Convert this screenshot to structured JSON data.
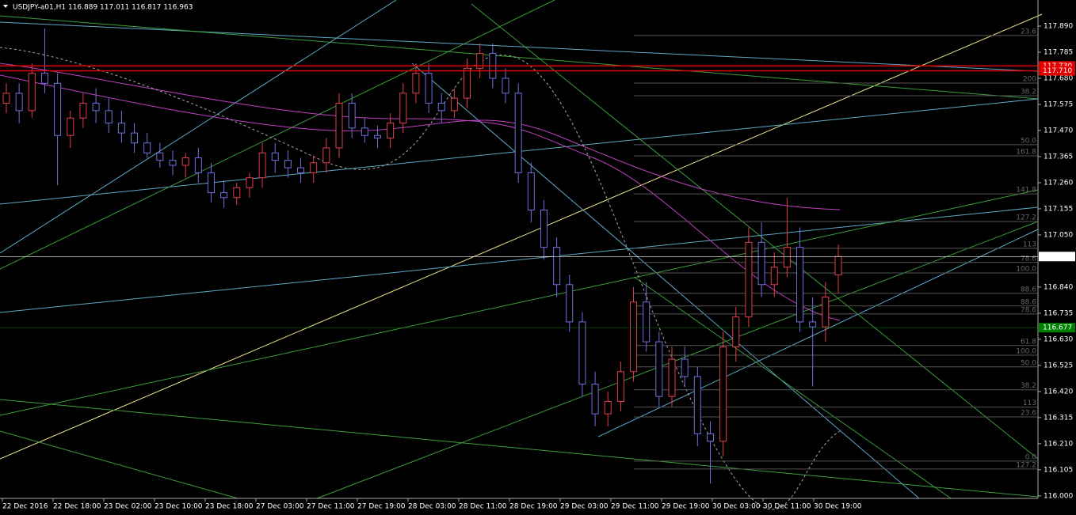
{
  "header": {
    "title": "USDJPY-a01,H1  116.889 117.011 116.817 116.963"
  },
  "chart_data": {
    "type": "candlestick",
    "open": [
      117.58,
      117.62,
      117.55,
      117.7,
      117.66,
      117.45,
      117.52,
      117.58,
      117.55,
      117.5,
      117.46,
      117.42,
      117.38,
      117.35,
      117.33,
      117.36,
      117.3,
      117.22,
      117.2,
      117.24,
      117.28,
      117.38,
      117.35,
      117.32,
      117.3,
      117.34,
      117.4,
      117.58,
      117.48,
      117.45,
      117.44,
      117.5,
      117.62,
      117.7,
      117.58,
      117.55,
      117.6,
      117.72,
      117.78,
      117.68,
      117.62,
      117.3,
      117.15,
      117.0,
      116.85,
      116.7,
      116.45,
      116.33,
      116.38,
      116.5,
      116.78,
      116.62,
      116.4,
      116.55,
      116.48,
      116.25,
      116.22,
      116.6,
      116.72,
      117.02,
      116.85,
      116.92,
      117.0,
      116.7,
      116.68,
      116.889
    ],
    "high": [
      117.66,
      117.66,
      117.74,
      117.88,
      117.7,
      117.55,
      117.62,
      117.64,
      117.6,
      117.55,
      117.5,
      117.46,
      117.42,
      117.39,
      117.38,
      117.4,
      117.34,
      117.27,
      117.26,
      117.3,
      117.42,
      117.42,
      117.39,
      117.36,
      117.37,
      117.44,
      117.62,
      117.62,
      117.52,
      117.49,
      117.54,
      117.66,
      117.74,
      117.74,
      117.62,
      117.64,
      117.76,
      117.82,
      117.82,
      117.72,
      117.66,
      117.34,
      117.19,
      117.04,
      116.89,
      116.74,
      116.5,
      116.42,
      116.54,
      116.84,
      116.86,
      116.66,
      116.6,
      116.6,
      116.52,
      116.3,
      116.66,
      116.76,
      117.08,
      117.1,
      116.98,
      117.2,
      117.08,
      116.8,
      116.86,
      117.011
    ],
    "low": [
      117.54,
      117.5,
      117.52,
      117.62,
      117.25,
      117.4,
      117.48,
      117.5,
      117.46,
      117.42,
      117.38,
      117.36,
      117.32,
      117.29,
      117.28,
      117.26,
      117.18,
      117.16,
      117.17,
      117.2,
      117.24,
      117.3,
      117.28,
      117.26,
      117.26,
      117.3,
      117.36,
      117.44,
      117.42,
      117.4,
      117.4,
      117.46,
      117.58,
      117.54,
      117.5,
      117.52,
      117.56,
      117.68,
      117.64,
      117.58,
      117.26,
      117.1,
      116.95,
      116.8,
      116.66,
      116.4,
      116.28,
      116.28,
      116.34,
      116.46,
      116.58,
      116.36,
      116.36,
      116.44,
      116.2,
      116.05,
      116.16,
      116.54,
      116.68,
      116.8,
      116.8,
      116.88,
      116.66,
      116.44,
      116.62,
      116.817
    ],
    "close": [
      117.62,
      117.55,
      117.7,
      117.66,
      117.45,
      117.52,
      117.58,
      117.55,
      117.5,
      117.46,
      117.42,
      117.38,
      117.35,
      117.33,
      117.36,
      117.3,
      117.22,
      117.2,
      117.24,
      117.28,
      117.38,
      117.35,
      117.32,
      117.3,
      117.34,
      117.4,
      117.58,
      117.48,
      117.45,
      117.44,
      117.5,
      117.62,
      117.7,
      117.58,
      117.55,
      117.6,
      117.72,
      117.78,
      117.68,
      117.62,
      117.3,
      117.15,
      117.0,
      116.85,
      116.7,
      116.45,
      116.33,
      116.38,
      116.5,
      116.78,
      116.62,
      116.4,
      116.55,
      116.48,
      116.25,
      116.22,
      116.6,
      116.72,
      117.02,
      116.85,
      116.92,
      117.0,
      116.7,
      116.68,
      116.8,
      116.963
    ],
    "bull_color": "#e0404a",
    "bear_color": "#7070e0",
    "xticks": [
      "22 Dec 2016",
      "22 Dec 18:00",
      "23 Dec 02:00",
      "23 Dec 10:00",
      "23 Dec 18:00",
      "27 Dec 03:00",
      "27 Dec 11:00",
      "27 Dec 19:00",
      "28 Dec 03:00",
      "28 Dec 11:00",
      "28 Dec 19:00",
      "29 Dec 03:00",
      "29 Dec 11:00",
      "29 Dec 19:00",
      "30 Dec 03:00",
      "30 Dec 11:00",
      "30 Dec 19:00"
    ],
    "ylim": [
      115.99,
      117.995
    ],
    "yticks": [
      {
        "value": 117.89,
        "label": "117.890"
      },
      {
        "value": 117.785,
        "label": "117.785"
      },
      {
        "value": 117.68,
        "label": "117.680"
      },
      {
        "value": 117.575,
        "label": "117.575"
      },
      {
        "value": 117.47,
        "label": "117.470"
      },
      {
        "value": 117.365,
        "label": "117.365"
      },
      {
        "value": 117.26,
        "label": "117.260"
      },
      {
        "value": 117.155,
        "label": "117.155"
      },
      {
        "value": 117.05,
        "label": "117.050"
      },
      {
        "value": 116.84,
        "label": "116.840"
      },
      {
        "value": 116.735,
        "label": "116.735"
      },
      {
        "value": 116.63,
        "label": "116.630"
      },
      {
        "value": 116.525,
        "label": "116.525"
      },
      {
        "value": 116.42,
        "label": "116.420"
      },
      {
        "value": 116.315,
        "label": "116.315"
      },
      {
        "value": 116.21,
        "label": "116.210"
      },
      {
        "value": 116.105,
        "label": "116.105"
      },
      {
        "value": 116.0,
        "label": "116.000"
      }
    ],
    "price_tags": [
      {
        "value": 117.73,
        "label": "117.730",
        "color": "#e00000"
      },
      {
        "value": 117.71,
        "label": "117.710",
        "color": "#e00000"
      },
      {
        "value": 116.677,
        "label": "116.677",
        "color": "#008000"
      },
      {
        "value": 116.963,
        "label": "116.963",
        "color": "#ffffff"
      }
    ],
    "levels": [
      {
        "value": 117.852,
        "label": "23.6"
      },
      {
        "value": 117.661,
        "label": "200"
      },
      {
        "value": 117.61,
        "label": "38.2"
      },
      {
        "value": 117.413,
        "label": "50.0"
      },
      {
        "value": 117.368,
        "label": "161.8"
      },
      {
        "value": 117.215,
        "label": "141.8"
      },
      {
        "value": 117.104,
        "label": "127.2"
      },
      {
        "value": 116.996,
        "label": "113"
      },
      {
        "value": 116.939,
        "label": "78.6"
      },
      {
        "value": 116.897,
        "label": "100.0"
      },
      {
        "value": 116.815,
        "label": "88.6"
      },
      {
        "value": 116.764,
        "label": "88.6"
      },
      {
        "value": 116.732,
        "label": "78.6"
      },
      {
        "value": 116.605,
        "label": "61.8"
      },
      {
        "value": 116.566,
        "label": "100.0"
      },
      {
        "value": 116.519,
        "label": "50.0"
      },
      {
        "value": 116.427,
        "label": "38.2"
      },
      {
        "value": 116.357,
        "label": "113"
      },
      {
        "value": 116.318,
        "label": "23.6"
      },
      {
        "value": 116.14,
        "label": "0.0"
      },
      {
        "value": 116.108,
        "label": "127.2"
      }
    ]
  }
}
